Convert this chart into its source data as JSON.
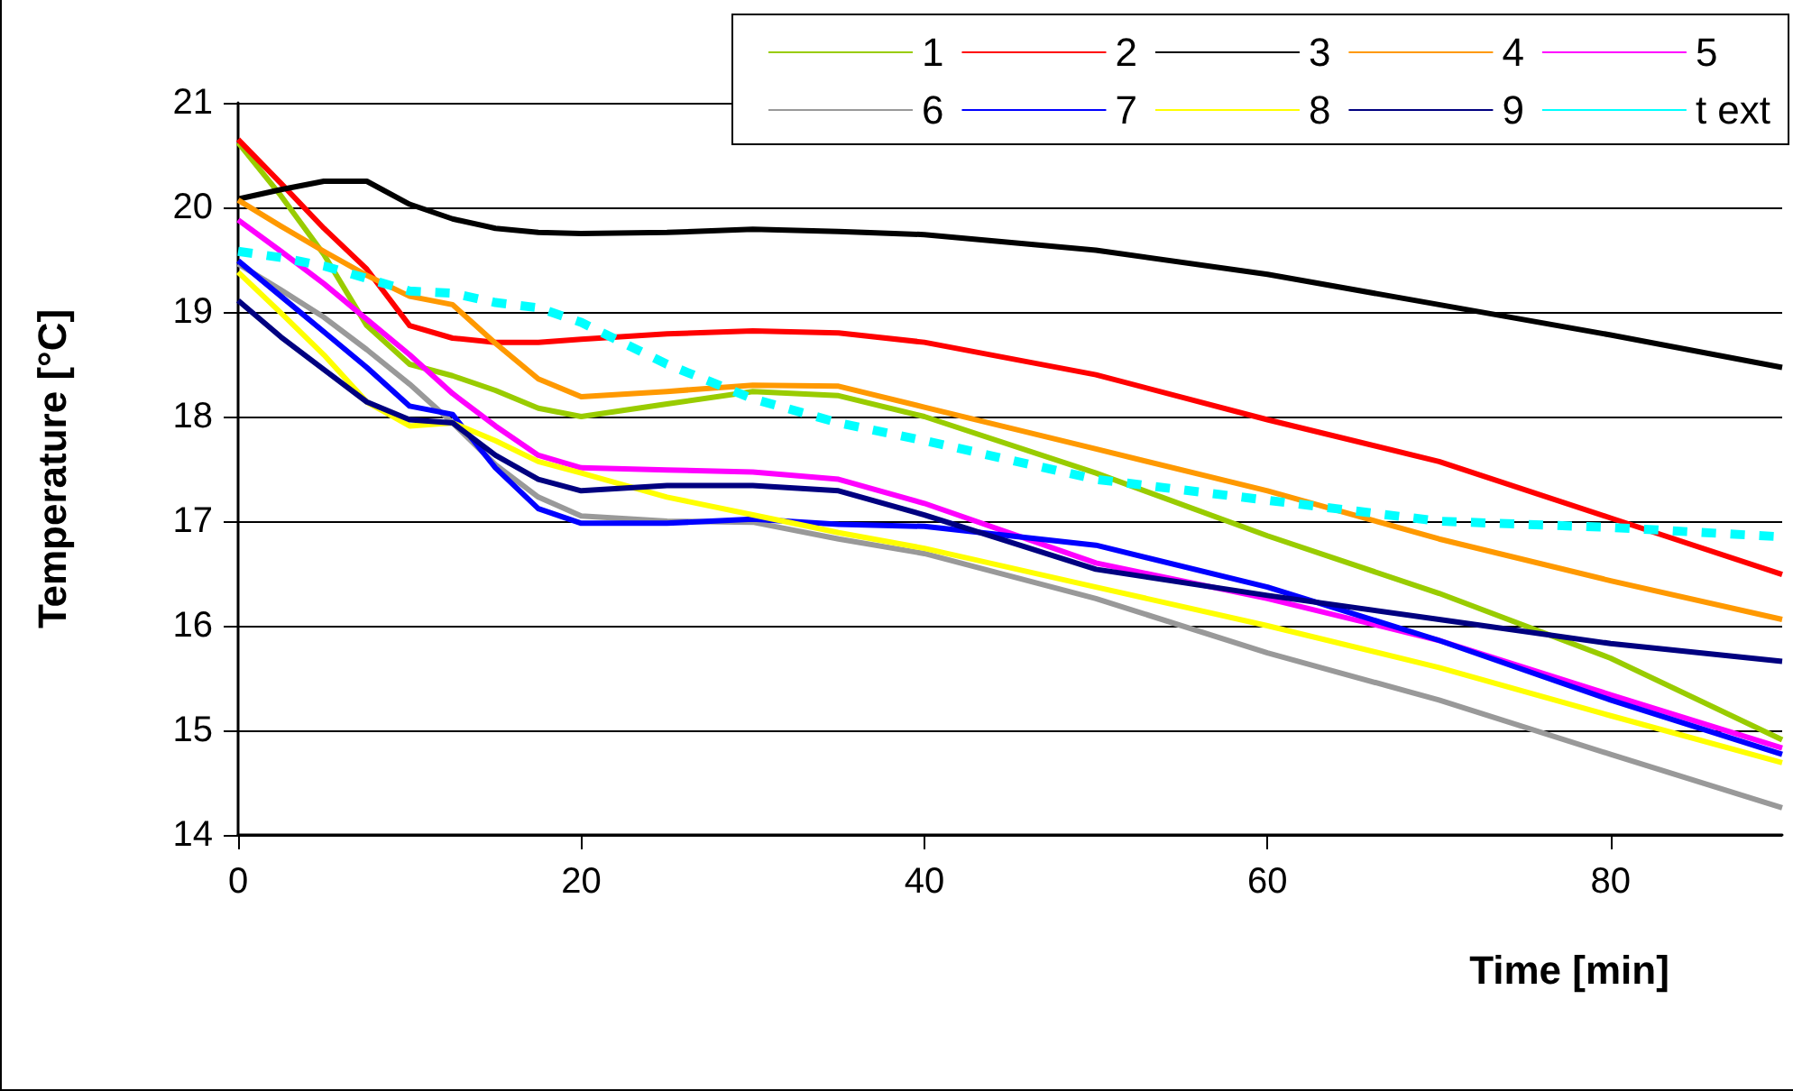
{
  "chart_data": {
    "type": "line",
    "xlabel": "Time [min]",
    "ylabel": "Temperature [°C]",
    "x": [
      0,
      2.5,
      5,
      7.5,
      10,
      12.5,
      15,
      17.5,
      20,
      25,
      30,
      35,
      40,
      50,
      60,
      70,
      80,
      90
    ],
    "xlim": [
      0,
      90
    ],
    "xticks": [
      0,
      20,
      40,
      60,
      80
    ],
    "ylim": [
      14,
      21
    ],
    "yticks": [
      14,
      15,
      16,
      17,
      18,
      19,
      20,
      21
    ],
    "grid": "y",
    "legend": "top right",
    "marker": "none",
    "series": [
      {
        "name": "1",
        "color": "#99cc00",
        "values": [
          20.62,
          20.11,
          19.55,
          18.87,
          18.5,
          18.39,
          18.25,
          18.08,
          18.0,
          18.12,
          18.24,
          18.2,
          18.0,
          17.46,
          16.86,
          16.31,
          15.69,
          14.91
        ]
      },
      {
        "name": "2",
        "color": "#ff0000",
        "values": [
          20.65,
          20.23,
          19.8,
          19.41,
          18.87,
          18.75,
          18.71,
          18.71,
          18.74,
          18.79,
          18.82,
          18.8,
          18.71,
          18.4,
          17.97,
          17.57,
          17.03,
          16.49
        ]
      },
      {
        "name": "3",
        "color": "#000000",
        "values": [
          20.08,
          20.17,
          20.25,
          20.25,
          20.03,
          19.89,
          19.8,
          19.76,
          19.75,
          19.76,
          19.79,
          19.77,
          19.74,
          19.59,
          19.36,
          19.07,
          18.78,
          18.47
        ]
      },
      {
        "name": "4",
        "color": "#ff9900",
        "values": [
          20.07,
          19.82,
          19.58,
          19.35,
          19.15,
          19.07,
          18.7,
          18.36,
          18.19,
          18.24,
          18.3,
          18.29,
          18.09,
          17.69,
          17.29,
          16.83,
          16.43,
          16.06
        ]
      },
      {
        "name": "5",
        "color": "#ff00ff",
        "values": [
          19.88,
          19.58,
          19.27,
          18.93,
          18.59,
          18.22,
          17.91,
          17.63,
          17.51,
          17.49,
          17.47,
          17.4,
          17.17,
          16.6,
          16.26,
          15.86,
          15.34,
          14.83
        ]
      },
      {
        "name": "6",
        "color": "#999999",
        "values": [
          19.46,
          19.21,
          18.95,
          18.64,
          18.31,
          17.94,
          17.54,
          17.23,
          17.05,
          17.0,
          16.99,
          16.83,
          16.69,
          16.26,
          15.74,
          15.29,
          14.77,
          14.26
        ]
      },
      {
        "name": "7",
        "color": "#0000ff",
        "values": [
          19.49,
          19.15,
          18.81,
          18.47,
          18.1,
          18.02,
          17.51,
          17.12,
          16.98,
          16.98,
          17.02,
          16.97,
          16.95,
          16.77,
          16.37,
          15.86,
          15.29,
          14.77
        ]
      },
      {
        "name": "8",
        "color": "#ffff00",
        "values": [
          19.38,
          18.99,
          18.59,
          18.14,
          17.91,
          17.94,
          17.77,
          17.57,
          17.46,
          17.23,
          17.06,
          16.89,
          16.74,
          16.37,
          16.0,
          15.6,
          15.14,
          14.69
        ]
      },
      {
        "name": "9",
        "color": "#000080",
        "values": [
          19.11,
          18.76,
          18.45,
          18.14,
          17.97,
          17.94,
          17.63,
          17.4,
          17.29,
          17.34,
          17.34,
          17.29,
          17.06,
          16.54,
          16.29,
          16.06,
          15.83,
          15.66
        ]
      },
      {
        "name": "t ext",
        "color": "#00ffff",
        "line_style": "dashed",
        "values": [
          19.58,
          19.52,
          19.44,
          19.32,
          19.2,
          19.18,
          19.09,
          19.04,
          18.9,
          18.5,
          18.17,
          17.94,
          17.77,
          17.4,
          17.2,
          17.0,
          16.94,
          16.85
        ]
      }
    ]
  }
}
